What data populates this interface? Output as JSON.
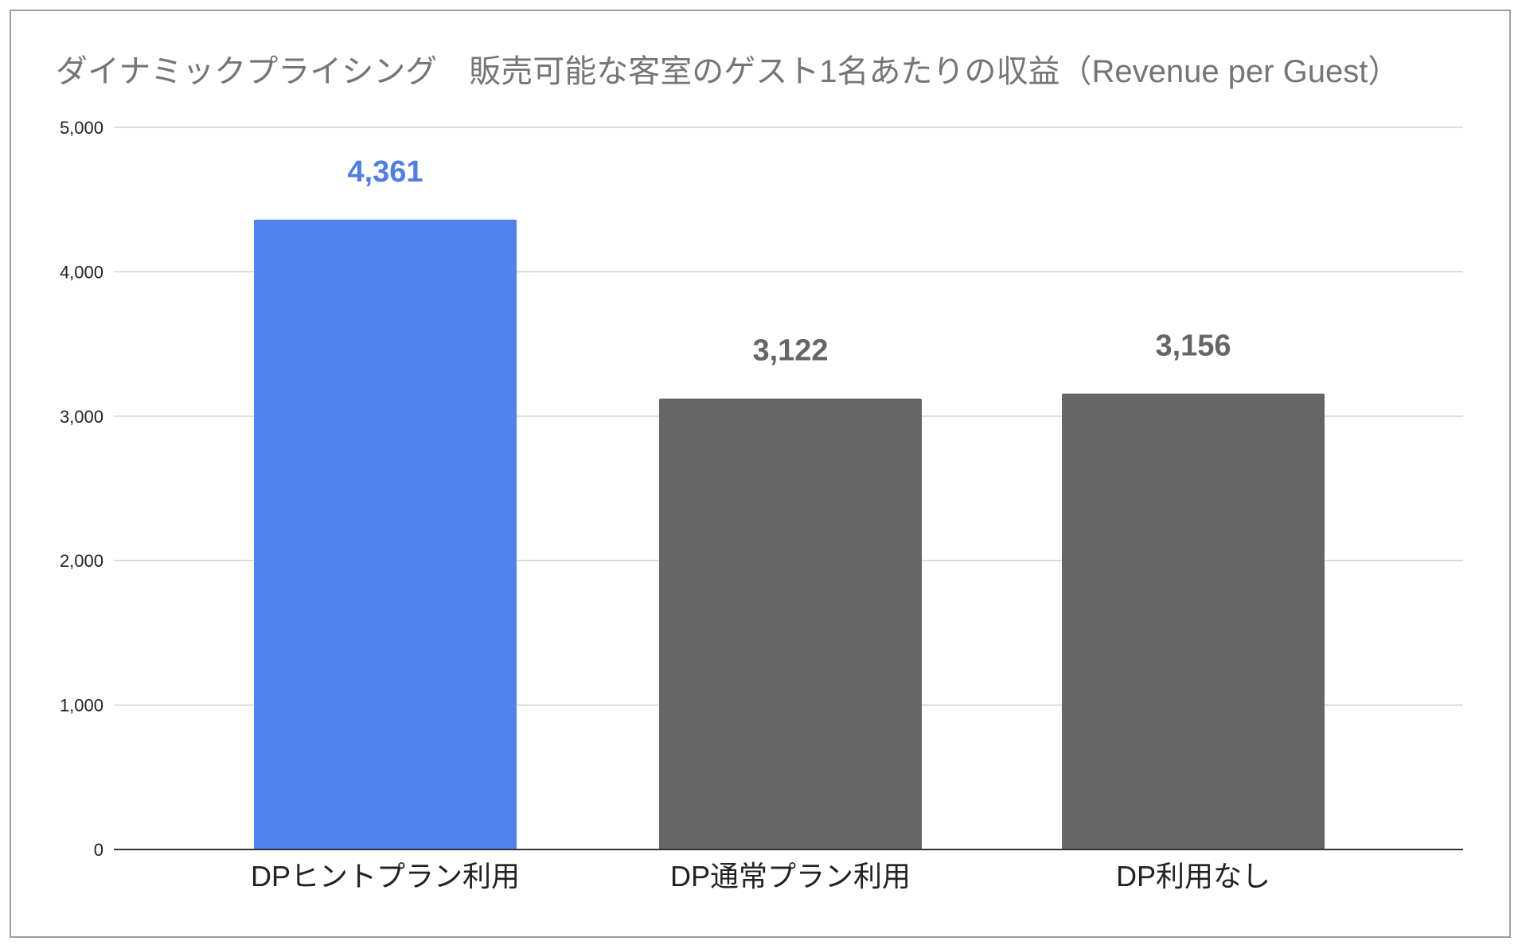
{
  "chart_data": {
    "type": "bar",
    "title": "ダイナミックプライシング　販売可能な客室のゲスト1名あたりの収益（Revenue per Guest）",
    "xlabel": "",
    "ylabel": "",
    "categories": [
      "DPヒントプラン利用",
      "DP通常プラン利用",
      "DP利用なし"
    ],
    "values": [
      4361,
      3122,
      3156
    ],
    "data_labels": [
      "4,361",
      "3,122",
      "3,156"
    ],
    "ylim": [
      0,
      5000
    ],
    "yticks": [
      0,
      1000,
      2000,
      3000,
      4000,
      5000
    ],
    "ytick_labels": [
      "0",
      "1,000",
      "2,000",
      "3,000",
      "4,000",
      "5,000"
    ],
    "grid": true,
    "legend": "none",
    "colors": {
      "highlight_bar": "#5283ec",
      "highlight_label": "#4e7fe6",
      "bar": "#666666",
      "label": "#666666",
      "gridline": "#d0d0d0",
      "axis": "#333333",
      "title": "#757575"
    },
    "bar_colors": [
      "#5283ec",
      "#666666",
      "#666666"
    ],
    "label_colors": [
      "#4e7fe6",
      "#666666",
      "#666666"
    ]
  }
}
